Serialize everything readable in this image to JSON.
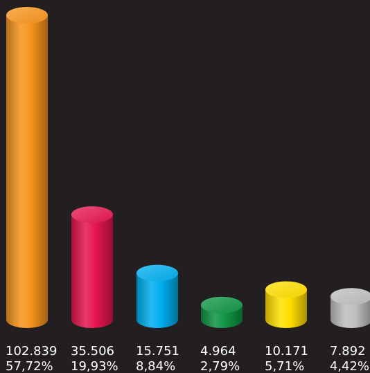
{
  "chart_data": {
    "type": "bar",
    "categories": [
      "",
      "",
      "",
      "",
      "",
      ""
    ],
    "values": [
      102839,
      35506,
      15751,
      4964,
      10171,
      7892
    ],
    "value_labels": [
      "102.839",
      "35.506",
      "15.751",
      "4.964",
      "10.171",
      "7.892"
    ],
    "percent_labels": [
      "57,72%",
      "19,93%",
      "8,84%",
      "2,79%",
      "5,71%",
      "4,42%"
    ],
    "colors": [
      "#f7941d",
      "#e5154f",
      "#00aeef",
      "#109444",
      "#ffde00",
      "#bcbec0"
    ],
    "title": "",
    "xlabel": "",
    "ylabel": "",
    "ylim": [
      0,
      102839
    ],
    "grid": false,
    "legend": "none"
  }
}
